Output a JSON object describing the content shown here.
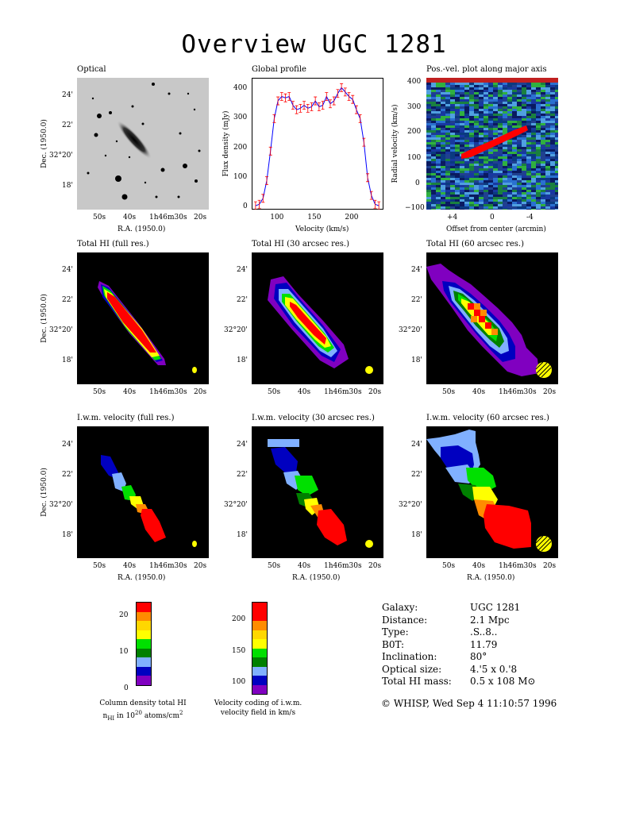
{
  "title": "Overview UGC 1281",
  "panels": {
    "optical": "Optical",
    "profile": "Global profile",
    "pv": "Pos.-vel. plot along major axis",
    "hi_full": "Total HI (full res.)",
    "hi_30": "Total HI (30 arcsec res.)",
    "hi_60": "Total HI (60 arcsec res.)",
    "vel_full": "I.w.m. velocity (full res.)",
    "vel_30": "I.w.m. velocity (30 arcsec res.)",
    "vel_60": "I.w.m. velocity (60 arcsec res.)"
  },
  "axes": {
    "dec_label": "Dec. (1950.0)",
    "ra_label": "R.A. (1950.0)",
    "dec_ticks": [
      "24'",
      "22'",
      "32°20'",
      "18'"
    ],
    "ra_ticks": [
      "50s",
      "40s",
      "1h46m30s",
      "20s"
    ],
    "flux_label": "Flux density (mJy)",
    "velocity_label": "Velocity (km/s)",
    "radial_label": "Radial velocity (km/s)",
    "offset_label": "Offset from center (arcmin)",
    "offset_ticks": [
      "+4",
      "0",
      "-4"
    ],
    "pv_y_ticks": [
      "400",
      "300",
      "200",
      "100",
      "0",
      "−100"
    ]
  },
  "chart_data": {
    "type": "line",
    "title": "Global profile",
    "xlabel": "Velocity (km/s)",
    "ylabel": "Flux density (mJy)",
    "xlim": [
      70,
      240
    ],
    "ylim": [
      0,
      430
    ],
    "x_ticks": [
      100,
      150,
      200
    ],
    "y_ticks": [
      0,
      100,
      200,
      300,
      400
    ],
    "x": [
      72,
      77,
      82,
      87,
      92,
      97,
      102,
      107,
      112,
      117,
      122,
      127,
      132,
      137,
      142,
      147,
      152,
      157,
      162,
      167,
      172,
      177,
      182,
      187,
      192,
      197,
      202,
      207,
      212,
      217,
      222,
      227,
      232,
      237
    ],
    "y": [
      5,
      10,
      30,
      90,
      190,
      300,
      360,
      375,
      370,
      375,
      345,
      330,
      335,
      345,
      335,
      340,
      360,
      340,
      345,
      375,
      350,
      360,
      385,
      405,
      390,
      375,
      365,
      330,
      300,
      220,
      100,
      40,
      10,
      5
    ],
    "series_color": "#0000ff",
    "errorbar_color": "#ff0000"
  },
  "colorbars": {
    "density": {
      "ticks": [
        "20",
        "10",
        "0"
      ],
      "caption_line1": "Column density total HI",
      "caption_line2": "n",
      "caption_sub": "HI",
      "caption_mid": " in 10",
      "caption_sup": "20",
      "caption_end": " atoms/cm",
      "caption_sup2": "2",
      "colors": [
        "#ff0000",
        "#ff8c00",
        "#ffd700",
        "#ffff00",
        "#00e000",
        "#008000",
        "#80b0ff",
        "#0000c0",
        "#8000c0"
      ]
    },
    "velocity": {
      "ticks": [
        "200",
        "150",
        "100"
      ],
      "caption_line1": "Velocity coding of i.w.m.",
      "caption_line2": "velocity field in km/s",
      "colors": [
        "#ff0000",
        "#ff0000",
        "#ff8c00",
        "#ffd700",
        "#ffff00",
        "#00e000",
        "#008000",
        "#80b0ff",
        "#0000c0",
        "#8000c0"
      ]
    }
  },
  "info": {
    "rows": [
      {
        "label": "Galaxy:",
        "value": "UGC 1281"
      },
      {
        "label": "Distance:",
        "value": "2.1 Mpc"
      },
      {
        "label": "Type:",
        "value": ".S..8.."
      },
      {
        "label": "B0T:",
        "value": "11.79"
      },
      {
        "label": "Inclination:",
        "value": "80°"
      },
      {
        "label": "Optical size:",
        "value": "4.'5 x 0.'8"
      },
      {
        "label": "Total HI mass:",
        "value": "0.5 x 108 M⊙"
      }
    ],
    "footer": "© WHISP, Wed Sep  4 11:10:57 1996"
  }
}
